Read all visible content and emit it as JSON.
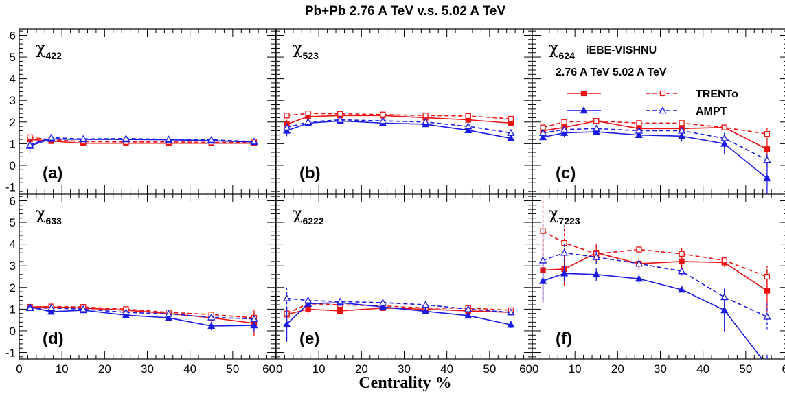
{
  "title": "Pb+Pb  2.76 A TeV v.s. 5.02 A TeV",
  "xlabel": "Centrality %",
  "colors": {
    "red": "#ee1111",
    "blue": "#1a1ae6",
    "axis": "#000000"
  },
  "legend": {
    "model": "iEBE-VISHNU",
    "energies": "2.76 A TeV 5.02 A TeV",
    "rows": [
      {
        "label": "TRENTo",
        "color": "#ee1111",
        "marker": "square"
      },
      {
        "label": "AMPT",
        "color": "#1a1ae6",
        "marker": "triangle"
      }
    ]
  },
  "chart_data": [
    {
      "type": "line",
      "panel": "(a)",
      "symbol": "χ",
      "subscript": "422",
      "xlim": [
        0,
        60
      ],
      "ylim": [
        -1.3,
        6.3
      ],
      "x": [
        2.5,
        7.5,
        15,
        25,
        35,
        45,
        55
      ],
      "series": [
        {
          "model": "TRENTo",
          "energy": "2.76 A TeV",
          "values": [
            1.2,
            1.12,
            1.02,
            1.02,
            1.02,
            1.02,
            1.02
          ],
          "err": [
            0.08,
            0.05,
            0.04,
            0.04,
            0.04,
            0.05,
            0.06
          ]
        },
        {
          "model": "TRENTo",
          "energy": "5.02 A TeV",
          "values": [
            1.3,
            1.18,
            1.1,
            1.08,
            1.08,
            1.06,
            1.06
          ],
          "err": [
            0.12,
            0.06,
            0.05,
            0.05,
            0.05,
            0.06,
            0.08
          ]
        },
        {
          "model": "AMPT",
          "energy": "2.76 A TeV",
          "values": [
            0.9,
            1.22,
            1.2,
            1.2,
            1.18,
            1.14,
            1.08
          ],
          "err": [
            0.35,
            0.08,
            0.05,
            0.05,
            0.05,
            0.06,
            0.08
          ]
        },
        {
          "model": "AMPT",
          "energy": "5.02 A TeV",
          "values": [
            0.95,
            1.28,
            1.22,
            1.24,
            1.2,
            1.18,
            1.1
          ],
          "err": [
            0.2,
            0.06,
            0.05,
            0.05,
            0.05,
            0.06,
            0.08
          ]
        }
      ]
    },
    {
      "type": "line",
      "panel": "(b)",
      "symbol": "χ",
      "subscript": "523",
      "xlim": [
        0,
        60
      ],
      "ylim": [
        -1.3,
        6.3
      ],
      "x": [
        2.5,
        7.5,
        15,
        25,
        35,
        45,
        55
      ],
      "series": [
        {
          "model": "TRENTo",
          "energy": "2.76 A TeV",
          "values": [
            1.9,
            2.25,
            2.3,
            2.3,
            2.2,
            2.1,
            1.95
          ],
          "err": [
            0.2,
            0.1,
            0.08,
            0.08,
            0.08,
            0.1,
            0.12
          ]
        },
        {
          "model": "TRENTo",
          "energy": "5.02 A TeV",
          "values": [
            2.3,
            2.4,
            2.38,
            2.35,
            2.3,
            2.28,
            2.15
          ],
          "err": [
            0.12,
            0.08,
            0.07,
            0.07,
            0.07,
            0.08,
            0.1
          ]
        },
        {
          "model": "AMPT",
          "energy": "2.76 A TeV",
          "values": [
            1.6,
            1.95,
            2.05,
            1.95,
            1.9,
            1.62,
            1.25
          ],
          "err": [
            0.25,
            0.12,
            0.08,
            0.08,
            0.08,
            0.1,
            0.1
          ]
        },
        {
          "model": "AMPT",
          "energy": "5.02 A TeV",
          "values": [
            1.75,
            2.0,
            2.1,
            2.05,
            2.0,
            1.8,
            1.5
          ],
          "err": [
            0.2,
            0.1,
            0.08,
            0.08,
            0.08,
            0.1,
            0.12
          ]
        }
      ]
    },
    {
      "type": "line",
      "panel": "(c)",
      "symbol": "χ",
      "subscript": "624",
      "xlim": [
        0,
        60
      ],
      "ylim": [
        -1.3,
        6.3
      ],
      "x": [
        2.5,
        7.5,
        15,
        25,
        35,
        45,
        55
      ],
      "series": [
        {
          "model": "TRENTo",
          "energy": "2.76 A TeV",
          "values": [
            1.6,
            1.75,
            2.05,
            1.7,
            1.7,
            1.75,
            0.75
          ],
          "err": [
            0.2,
            0.12,
            0.1,
            0.1,
            0.12,
            0.12,
            0.4
          ]
        },
        {
          "model": "TRENTo",
          "energy": "5.02 A TeV",
          "values": [
            1.75,
            2.0,
            2.05,
            1.95,
            1.95,
            1.75,
            1.45
          ],
          "err": [
            0.15,
            0.1,
            0.1,
            0.1,
            0.1,
            0.12,
            0.3
          ]
        },
        {
          "model": "AMPT",
          "energy": "2.76 A TeV",
          "values": [
            1.3,
            1.5,
            1.55,
            1.4,
            1.35,
            1.0,
            -0.6
          ],
          "err": [
            0.2,
            0.2,
            0.15,
            0.15,
            0.25,
            0.5,
            0.9
          ]
        },
        {
          "model": "AMPT",
          "energy": "5.02 A TeV",
          "values": [
            1.5,
            1.65,
            1.7,
            1.6,
            1.6,
            1.25,
            0.25
          ],
          "err": [
            0.2,
            0.15,
            0.12,
            0.12,
            0.15,
            0.25,
            0.3
          ]
        }
      ]
    },
    {
      "type": "line",
      "panel": "(d)",
      "symbol": "χ",
      "subscript": "633",
      "xlim": [
        0,
        60
      ],
      "ylim": [
        -1.3,
        6.3
      ],
      "x": [
        2.5,
        7.5,
        15,
        25,
        35,
        45,
        55
      ],
      "series": [
        {
          "model": "TRENTo",
          "energy": "2.76 A TeV",
          "values": [
            1.1,
            1.1,
            1.05,
            0.95,
            0.8,
            0.6,
            0.35
          ],
          "err": [
            0.12,
            0.08,
            0.06,
            0.06,
            0.08,
            0.15,
            0.6
          ]
        },
        {
          "model": "TRENTo",
          "energy": "5.02 A TeV",
          "values": [
            1.1,
            1.12,
            1.1,
            1.0,
            0.85,
            0.75,
            0.6
          ],
          "err": [
            0.1,
            0.06,
            0.06,
            0.06,
            0.08,
            0.12,
            0.3
          ]
        },
        {
          "model": "AMPT",
          "energy": "2.76 A TeV",
          "values": [
            1.1,
            0.88,
            0.95,
            0.72,
            0.6,
            0.22,
            0.25
          ],
          "err": [
            0.1,
            0.08,
            0.06,
            0.08,
            0.1,
            0.2,
            0.3
          ]
        },
        {
          "model": "AMPT",
          "energy": "5.02 A TeV",
          "values": [
            1.05,
            1.05,
            1.0,
            0.85,
            0.78,
            0.62,
            0.55
          ],
          "err": [
            0.1,
            0.06,
            0.06,
            0.06,
            0.08,
            0.12,
            0.2
          ]
        }
      ]
    },
    {
      "type": "line",
      "panel": "(e)",
      "symbol": "χ",
      "subscript": "6222",
      "xlim": [
        0,
        60
      ],
      "ylim": [
        -1.3,
        6.3
      ],
      "x": [
        2.5,
        7.5,
        15,
        25,
        35,
        45,
        55
      ],
      "series": [
        {
          "model": "TRENTo",
          "energy": "2.76 A TeV",
          "values": [
            0.75,
            1.0,
            0.92,
            1.05,
            1.0,
            0.92,
            0.85
          ],
          "err": [
            0.3,
            0.25,
            0.12,
            0.08,
            0.08,
            0.1,
            0.12
          ]
        },
        {
          "model": "TRENTo",
          "energy": "5.02 A TeV",
          "values": [
            0.8,
            1.25,
            1.2,
            1.15,
            1.05,
            1.05,
            0.95
          ],
          "err": [
            0.25,
            0.3,
            0.15,
            0.1,
            0.1,
            0.1,
            0.12
          ]
        },
        {
          "model": "AMPT",
          "energy": "2.76 A TeV",
          "values": [
            0.3,
            1.25,
            1.3,
            1.1,
            0.9,
            0.7,
            0.28
          ],
          "err": [
            0.8,
            0.2,
            0.15,
            0.1,
            0.1,
            0.1,
            0.15
          ]
        },
        {
          "model": "AMPT",
          "energy": "5.02 A TeV",
          "values": [
            1.5,
            1.4,
            1.35,
            1.3,
            1.2,
            1.0,
            0.85
          ],
          "err": [
            0.5,
            0.2,
            0.12,
            0.1,
            0.1,
            0.1,
            0.12
          ]
        }
      ]
    },
    {
      "type": "line",
      "panel": "(f)",
      "symbol": "χ",
      "subscript": "7223",
      "xlim": [
        0,
        60
      ],
      "ylim": [
        -1.3,
        6.3
      ],
      "x": [
        2.5,
        7.5,
        15,
        25,
        35,
        45,
        55
      ],
      "series": [
        {
          "model": "TRENTo",
          "energy": "2.76 A TeV",
          "values": [
            2.8,
            2.85,
            3.6,
            3.1,
            3.2,
            3.15,
            1.85
          ],
          "err": [
            1.5,
            0.8,
            0.4,
            0.3,
            0.3,
            0.2,
            1.0
          ]
        },
        {
          "model": "TRENTo",
          "energy": "5.02 A TeV",
          "values": [
            4.6,
            4.05,
            3.55,
            3.75,
            3.55,
            3.25,
            2.5
          ],
          "err": [
            1.6,
            0.8,
            0.4,
            0.2,
            0.3,
            0.2,
            0.5
          ]
        },
        {
          "model": "AMPT",
          "energy": "2.76 A TeV",
          "values": [
            2.3,
            2.65,
            2.6,
            2.4,
            1.9,
            0.95,
            -1.6
          ],
          "err": [
            1.0,
            0.4,
            0.3,
            0.25,
            0.1,
            1.0,
            0.5
          ]
        },
        {
          "model": "AMPT",
          "energy": "5.02 A TeV",
          "values": [
            3.25,
            3.6,
            3.4,
            3.1,
            2.75,
            1.55,
            0.65
          ],
          "err": [
            1.8,
            0.4,
            0.3,
            0.2,
            0.2,
            0.4,
            0.6
          ]
        }
      ]
    }
  ]
}
